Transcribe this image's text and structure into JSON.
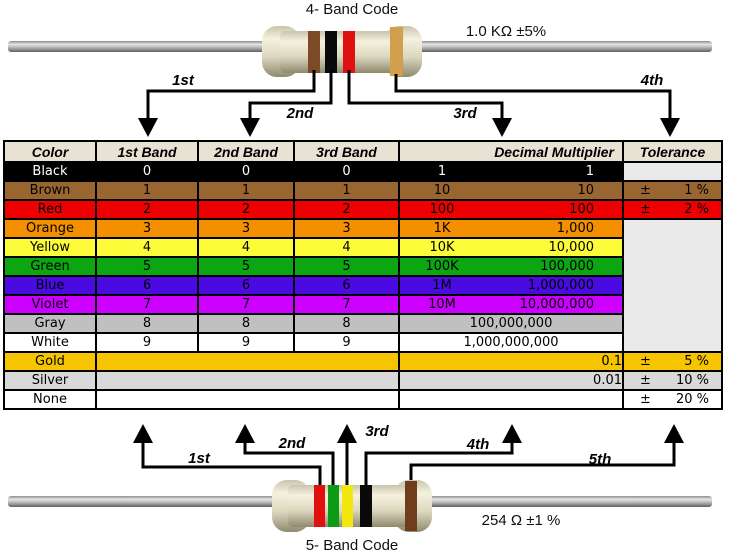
{
  "resistors": {
    "four_band": {
      "title": "4- Band Code",
      "value": "1.0 KΩ  ±5%",
      "bands": [
        {
          "name": "brown",
          "hex": "#7c4a27"
        },
        {
          "name": "black",
          "hex": "#0a0a0a"
        },
        {
          "name": "red",
          "hex": "#e01010"
        },
        {
          "name": "gold",
          "hex": "#d2a04c"
        }
      ],
      "arrow_labels": [
        "1st",
        "2nd",
        "3rd",
        "4th"
      ]
    },
    "five_band": {
      "title": "5- Band Code",
      "value": "254 Ω  ±1 %",
      "bands": [
        {
          "name": "red",
          "hex": "#e01010"
        },
        {
          "name": "green",
          "hex": "#0b9b14"
        },
        {
          "name": "yellow",
          "hex": "#f2e80e"
        },
        {
          "name": "black",
          "hex": "#0a0a0a"
        },
        {
          "name": "brown",
          "hex": "#6f3d1c"
        }
      ],
      "arrow_labels": [
        "1st",
        "2nd",
        "3rd",
        "4th",
        "5th"
      ]
    }
  },
  "table": {
    "colors": {
      "header_bg": "#e8e2d4",
      "empty_bg": "#eaeaea"
    },
    "headers": [
      "Color",
      "1st Band",
      "2nd Band",
      "3rd Band",
      "Decimal Multiplier",
      "Tolerance"
    ],
    "rows": [
      {
        "name": "Black",
        "bg": "#000000",
        "fg": "#ffffff",
        "bands": [
          "0",
          "0",
          "0"
        ],
        "mult": {
          "short": "1",
          "long": "1"
        },
        "tol": {
          "type": "empty"
        }
      },
      {
        "name": "Brown",
        "bg": "#996632",
        "fg": "#000000",
        "bands": [
          "1",
          "1",
          "1"
        ],
        "mult": {
          "short": "10",
          "long": "10"
        },
        "tol": {
          "type": "value",
          "pm": "±",
          "val": "1 %"
        }
      },
      {
        "name": "Red",
        "bg": "#ee0000",
        "fg": "#000000",
        "bands": [
          "2",
          "2",
          "2"
        ],
        "mult": {
          "short": "100",
          "long": "100"
        },
        "tol": {
          "type": "value",
          "pm": "±",
          "val": "2 %"
        }
      },
      {
        "name": "Orange",
        "bg": "#f49000",
        "fg": "#000000",
        "bands": [
          "3",
          "3",
          "3"
        ],
        "mult": {
          "short": "1K",
          "long": "1,000"
        },
        "tol": {
          "type": "merged-start"
        }
      },
      {
        "name": "Yellow",
        "bg": "#fcfc3b",
        "fg": "#000000",
        "bands": [
          "4",
          "4",
          "4"
        ],
        "mult": {
          "short": "10K",
          "long": "10,000"
        },
        "tol": {
          "type": "merged"
        }
      },
      {
        "name": "Green",
        "bg": "#0ba612",
        "fg": "#000000",
        "bands": [
          "5",
          "5",
          "5"
        ],
        "mult": {
          "short": "100K",
          "long": "100,000"
        },
        "tol": {
          "type": "merged"
        }
      },
      {
        "name": "Blue",
        "bg": "#4a0be0",
        "fg": "#000000",
        "bands": [
          "6",
          "6",
          "6"
        ],
        "mult": {
          "short": "1M",
          "long": "1,000,000"
        },
        "tol": {
          "type": "merged"
        }
      },
      {
        "name": "Violet",
        "bg": "#cc00ff",
        "fg": "#000000",
        "bands": [
          "7",
          "7",
          "7"
        ],
        "mult": {
          "short": "10M",
          "long": "10,000,000"
        },
        "tol": {
          "type": "merged"
        }
      },
      {
        "name": "Gray",
        "bg": "#c0c0c0",
        "fg": "#000000",
        "bands": [
          "8",
          "8",
          "8"
        ],
        "mult": {
          "center": "100,000,000"
        },
        "tol": {
          "type": "merged"
        }
      },
      {
        "name": "White",
        "bg": "#ffffff",
        "fg": "#000000",
        "bands": [
          "9",
          "9",
          "9"
        ],
        "mult": {
          "center": "1,000,000,000"
        },
        "tol": {
          "type": "merged"
        }
      },
      {
        "name": "Gold",
        "bg": "#f7c500",
        "fg": "#000000",
        "bands": null,
        "mult": {
          "right": "0.1"
        },
        "tol": {
          "type": "value",
          "pm": "±",
          "val": "5 %"
        }
      },
      {
        "name": "Silver",
        "bg": "#d9d9d9",
        "fg": "#000000",
        "bands": null,
        "mult": {
          "right": "0.01"
        },
        "tol": {
          "type": "value",
          "pm": "±",
          "val": "10 %"
        }
      },
      {
        "name": "None",
        "bg": "#ffffff",
        "fg": "#000000",
        "bands": null,
        "mult": {},
        "tol": {
          "type": "value",
          "pm": "±",
          "val": "20 %"
        }
      }
    ]
  }
}
